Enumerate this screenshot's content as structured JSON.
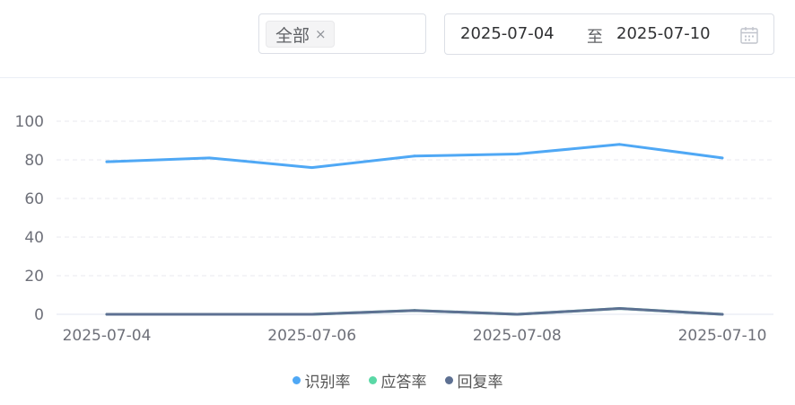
{
  "filter": {
    "tag_label": "全部",
    "tag_close": "×"
  },
  "date_range": {
    "start": "2025-07-04",
    "separator": "至",
    "end": "2025-07-10"
  },
  "icons": {
    "calendar": "calendar-icon",
    "tag_close": "close-icon"
  },
  "chart_data": {
    "type": "line",
    "x": [
      "2025-07-04",
      "2025-07-05",
      "2025-07-06",
      "2025-07-07",
      "2025-07-08",
      "2025-07-09",
      "2025-07-10"
    ],
    "x_tick_labels": [
      "2025-07-04",
      "2025-07-06",
      "2025-07-08",
      "2025-07-10"
    ],
    "y_ticks": [
      0,
      20,
      40,
      60,
      80,
      100
    ],
    "ylim": [
      0,
      100
    ],
    "grid": true,
    "legend_position": "bottom",
    "series": [
      {
        "name": "识别率",
        "color": "#4fa8f5",
        "values": [
          79,
          81,
          76,
          82,
          83,
          88,
          81
        ]
      },
      {
        "name": "应答率",
        "color": "#5ad8a6",
        "values": [
          0,
          0,
          0,
          2,
          0,
          3,
          0
        ]
      },
      {
        "name": "回复率",
        "color": "#5d7092",
        "values": [
          0,
          0,
          0,
          2,
          0,
          3,
          0
        ]
      }
    ]
  }
}
